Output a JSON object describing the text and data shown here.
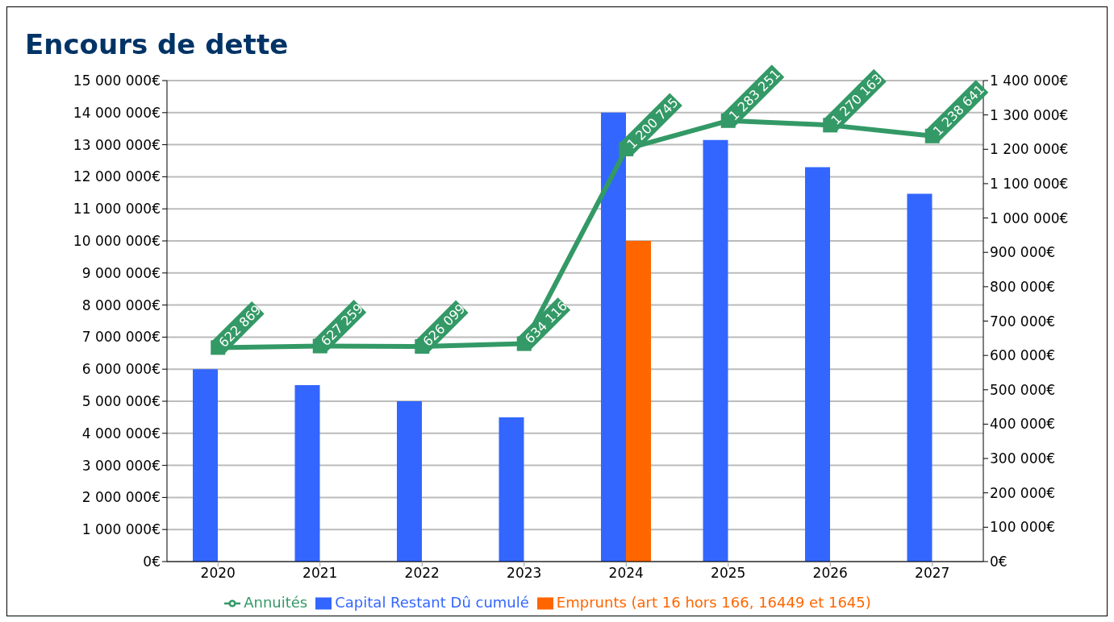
{
  "chart_data": {
    "type": "bar",
    "title": "Encours de dette",
    "categories": [
      "2020",
      "2021",
      "2022",
      "2023",
      "2024",
      "2025",
      "2026",
      "2027"
    ],
    "series": [
      {
        "name": "Capital Restant Dû cumulé",
        "color": "#3366ff",
        "values": [
          6000000,
          5500000,
          5000000,
          4500000,
          14000000,
          13150000,
          12300000,
          11470000
        ]
      },
      {
        "name": "Emprunts (art 16 hors 166, 16449 et 1645)",
        "color": "#ff6600",
        "values": [
          null,
          null,
          null,
          null,
          10000000,
          null,
          null,
          null
        ]
      },
      {
        "name": "Annuités",
        "type": "line",
        "axis": "y2",
        "color": "#339966",
        "marker": "square",
        "data_labels": true,
        "values": [
          622869,
          627259,
          626099,
          634116,
          1200745,
          1283251,
          1270163,
          1238641
        ]
      }
    ],
    "ylim": [
      0,
      15000000
    ],
    "yticks": [
      {
        "value": 0,
        "label": "0€"
      },
      {
        "value": 1000000,
        "label": "1 000 000€"
      },
      {
        "value": 2000000,
        "label": "2 000 000€"
      },
      {
        "value": 3000000,
        "label": "3 000 000€"
      },
      {
        "value": 4000000,
        "label": "4 000 000€"
      },
      {
        "value": 5000000,
        "label": "5 000 000€"
      },
      {
        "value": 6000000,
        "label": "6 000 000€"
      },
      {
        "value": 7000000,
        "label": "7 000 000€"
      },
      {
        "value": 8000000,
        "label": "8 000 000€"
      },
      {
        "value": 9000000,
        "label": "9 000 000€"
      },
      {
        "value": 10000000,
        "label": "10 000 000€"
      },
      {
        "value": 11000000,
        "label": "11 000 000€"
      },
      {
        "value": 12000000,
        "label": "12 000 000€"
      },
      {
        "value": 13000000,
        "label": "13 000 000€"
      },
      {
        "value": 14000000,
        "label": "14 000 000€"
      },
      {
        "value": 15000000,
        "label": "15 000 000€"
      }
    ],
    "y2lim": [
      0,
      1400000
    ],
    "y2ticks": [
      {
        "value": 0,
        "label": "0€"
      },
      {
        "value": 100000,
        "label": "100 000€"
      },
      {
        "value": 200000,
        "label": "200 000€"
      },
      {
        "value": 300000,
        "label": "300 000€"
      },
      {
        "value": 400000,
        "label": "400 000€"
      },
      {
        "value": 500000,
        "label": "500 000€"
      },
      {
        "value": 600000,
        "label": "600 000€"
      },
      {
        "value": 700000,
        "label": "700 000€"
      },
      {
        "value": 800000,
        "label": "800 000€"
      },
      {
        "value": 900000,
        "label": "900 000€"
      },
      {
        "value": 1000000,
        "label": "1 000 000€"
      },
      {
        "value": 1100000,
        "label": "1 100 000€"
      },
      {
        "value": 1200000,
        "label": "1 200 000€"
      },
      {
        "value": 1300000,
        "label": "1 300 000€"
      },
      {
        "value": 1400000,
        "label": "1 400 000€"
      }
    ],
    "grid": "y",
    "legend": "bottom"
  }
}
